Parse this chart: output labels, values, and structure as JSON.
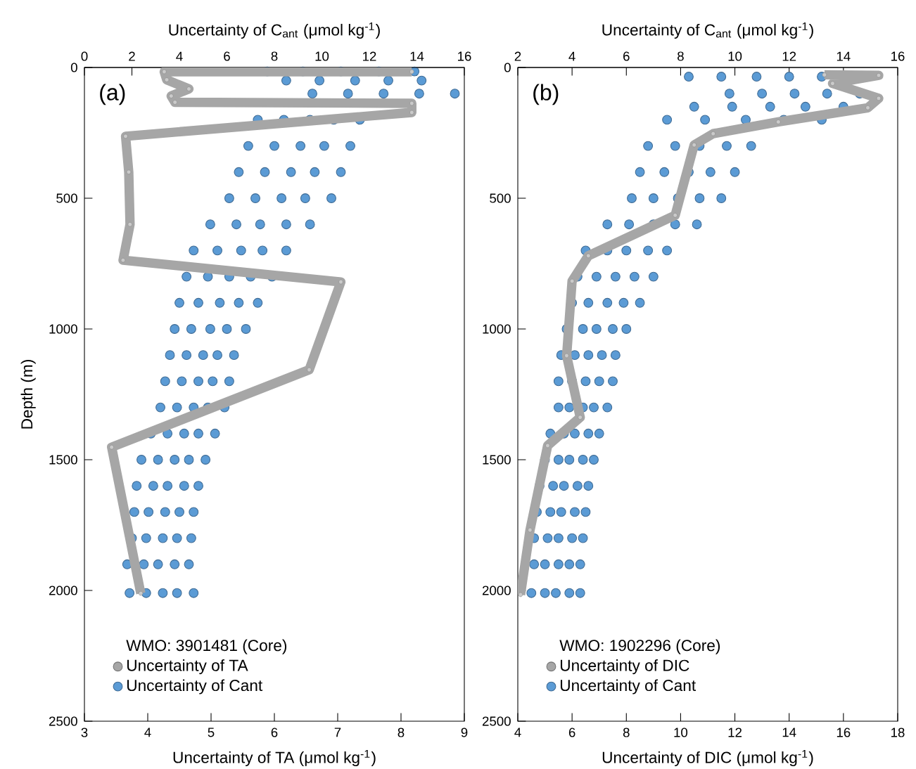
{
  "chart_data": [
    {
      "type": "scatter",
      "xlabel": "Uncertainty of TA (μmol kg$^{-1}$)",
      "x2label": "Uncertainty of C$_{ant}$ (μmol kg$^{-1}$)",
      "ylabel": "Depth (m)",
      "legend_title": "WMO: 3901481 (Core)",
      "annotations": [
        "(a)"
      ],
      "xlim": [
        3,
        9
      ],
      "xticks": [
        3,
        4,
        5,
        6,
        7,
        8,
        9
      ],
      "x2lim": [
        0,
        16
      ],
      "x2ticks": [
        0,
        2,
        4,
        6,
        8,
        10,
        12,
        14,
        16
      ],
      "ylim": [
        2500,
        0
      ],
      "yticks": [
        0,
        500,
        1000,
        1500,
        2000,
        2500
      ],
      "legend": "bottom left",
      "marker": "circle",
      "series": [
        {
          "name": "Uncertainty of TA",
          "type": "line",
          "color": "#a6a6a6",
          "x": [
            8.17,
            4.26,
            4.3,
            4.65,
            4.37,
            4.43,
            8.17,
            8.17,
            3.65,
            3.7,
            3.72,
            3.61,
            7.05,
            6.55,
            3.43,
            3.89
          ],
          "values": [
            16,
            16,
            47,
            82,
            109,
            133,
            137,
            172,
            263,
            400,
            600,
            737,
            820,
            1156,
            1452,
            2011
          ]
        },
        {
          "name": "Uncertainty of Cant",
          "axis": "x2",
          "color": "#5b9bd5",
          "x": [
            7.7,
            9.2,
            10.8,
            12.4,
            13.9,
            8.5,
            9.9,
            11.4,
            12.8,
            14.2,
            9.6,
            11.1,
            12.6,
            14.1,
            15.6,
            7.3,
            8.4,
            9.5,
            10.5,
            11.6,
            6.9,
            8.0,
            9.1,
            10.1,
            11.2,
            6.5,
            7.6,
            8.7,
            9.7,
            10.8,
            6.1,
            7.2,
            8.3,
            9.3,
            10.4,
            5.3,
            6.4,
            7.4,
            8.5,
            9.5,
            4.6,
            5.6,
            6.6,
            7.5,
            8.5,
            4.3,
            5.2,
            6.1,
            7.0,
            7.9,
            4.0,
            4.8,
            5.7,
            6.5,
            7.3,
            3.8,
            4.5,
            5.3,
            6.0,
            6.8,
            3.6,
            4.3,
            5.0,
            5.6,
            6.3,
            3.4,
            4.1,
            4.8,
            5.4,
            6.1,
            3.2,
            3.9,
            4.6,
            5.2,
            5.9,
            2.8,
            3.5,
            4.2,
            4.8,
            5.5,
            2.4,
            3.1,
            3.8,
            4.4,
            5.1,
            2.2,
            2.9,
            3.5,
            4.2,
            4.8,
            2.1,
            2.7,
            3.4,
            4.0,
            4.6,
            2.0,
            2.6,
            3.3,
            3.9,
            4.5,
            1.8,
            2.5,
            3.1,
            3.8,
            4.4,
            1.9,
            2.6,
            3.3,
            3.9,
            4.6
          ],
          "values": [
            15,
            15,
            15,
            15,
            15,
            50,
            50,
            50,
            50,
            50,
            100,
            100,
            100,
            100,
            100,
            200,
            200,
            200,
            200,
            200,
            300,
            300,
            300,
            300,
            300,
            400,
            400,
            400,
            400,
            400,
            500,
            500,
            500,
            500,
            500,
            600,
            600,
            600,
            600,
            600,
            700,
            700,
            700,
            700,
            700,
            800,
            800,
            800,
            800,
            800,
            900,
            900,
            900,
            900,
            900,
            1000,
            1000,
            1000,
            1000,
            1000,
            1100,
            1100,
            1100,
            1100,
            1100,
            1200,
            1200,
            1200,
            1200,
            1200,
            1300,
            1300,
            1300,
            1300,
            1300,
            1400,
            1400,
            1400,
            1400,
            1400,
            1500,
            1500,
            1500,
            1500,
            1500,
            1600,
            1600,
            1600,
            1600,
            1600,
            1700,
            1700,
            1700,
            1700,
            1700,
            1800,
            1800,
            1800,
            1800,
            1800,
            1900,
            1900,
            1900,
            1900,
            1900,
            2010,
            2010,
            2010,
            2010,
            2010
          ]
        }
      ]
    },
    {
      "type": "scatter",
      "xlabel": "Uncertainty of DIC (μmol kg$^{-1}$)",
      "x2label": "Uncertainty of C$_{ant}$ (μmol kg$^{-1}$)",
      "legend_title": "WMO: 1902296 (Core)",
      "annotations": [
        "(b)"
      ],
      "xlim": [
        4,
        18
      ],
      "xticks": [
        4,
        6,
        8,
        10,
        12,
        14,
        16,
        18
      ],
      "x2lim": [
        2,
        16
      ],
      "x2ticks": [
        2,
        4,
        6,
        8,
        10,
        12,
        14,
        16
      ],
      "ylim": [
        2500,
        0
      ],
      "yticks": [
        0,
        500,
        1000,
        1500,
        2000,
        2500
      ],
      "legend": "bottom left",
      "marker": "circle",
      "series": [
        {
          "name": "Uncertainty of DIC",
          "type": "line",
          "color": "#a6a6a6",
          "x": [
            15.3,
            17.3,
            15.6,
            17.3,
            16.9,
            13.6,
            11.2,
            10.5,
            9.8,
            6.6,
            6.0,
            5.8,
            6.3,
            5.1,
            4.45,
            4.1
          ],
          "values": [
            28,
            30,
            61,
            118,
            154,
            208,
            253,
            296,
            565,
            720,
            817,
            1102,
            1338,
            1446,
            1769,
            2016
          ]
        },
        {
          "name": "Uncertainty of Cant",
          "axis": "x2",
          "color": "#5b9bd5",
          "x": [
            8.3,
            9.5,
            10.8,
            12.0,
            13.2,
            9.8,
            11.0,
            12.2,
            13.4,
            14.6,
            8.5,
            9.9,
            11.3,
            12.6,
            14.0,
            7.5,
            8.9,
            10.4,
            11.8,
            13.2,
            6.8,
            7.8,
            8.7,
            9.7,
            10.6,
            6.5,
            7.4,
            8.3,
            9.1,
            10.0,
            6.2,
            7.0,
            7.9,
            8.7,
            9.5,
            5.3,
            6.1,
            7.0,
            7.8,
            8.6,
            4.5,
            5.3,
            6.0,
            6.8,
            7.5,
            4.2,
            4.9,
            5.6,
            6.3,
            7.0,
            4.0,
            4.6,
            5.3,
            5.9,
            6.5,
            3.8,
            4.4,
            4.9,
            5.5,
            6.0,
            3.6,
            4.1,
            4.6,
            5.1,
            5.6,
            3.5,
            4.0,
            4.5,
            5.0,
            5.5,
            3.5,
            3.9,
            4.4,
            4.8,
            5.3,
            3.2,
            3.7,
            4.1,
            4.6,
            5.0,
            3.0,
            3.5,
            3.9,
            4.4,
            4.8,
            2.8,
            3.3,
            3.7,
            4.2,
            4.6,
            2.7,
            3.2,
            3.6,
            4.1,
            4.5,
            2.6,
            3.1,
            3.5,
            4.0,
            4.4,
            2.6,
            3.0,
            3.5,
            3.9,
            4.3,
            2.5,
            3.0,
            3.4,
            3.9,
            4.3
          ],
          "values": [
            35,
            35,
            35,
            35,
            35,
            100,
            100,
            100,
            100,
            100,
            150,
            150,
            150,
            150,
            150,
            200,
            200,
            200,
            200,
            200,
            300,
            300,
            300,
            300,
            300,
            400,
            400,
            400,
            400,
            400,
            500,
            500,
            500,
            500,
            500,
            600,
            600,
            600,
            600,
            600,
            700,
            700,
            700,
            700,
            700,
            800,
            800,
            800,
            800,
            800,
            900,
            900,
            900,
            900,
            900,
            1000,
            1000,
            1000,
            1000,
            1000,
            1100,
            1100,
            1100,
            1100,
            1100,
            1200,
            1200,
            1200,
            1200,
            1200,
            1300,
            1300,
            1300,
            1300,
            1300,
            1400,
            1400,
            1400,
            1400,
            1400,
            1500,
            1500,
            1500,
            1500,
            1500,
            1600,
            1600,
            1600,
            1600,
            1600,
            1700,
            1700,
            1700,
            1700,
            1700,
            1800,
            1800,
            1800,
            1800,
            1800,
            1900,
            1900,
            1900,
            1900,
            1900,
            2010,
            2010,
            2010,
            2010,
            2010
          ]
        }
      ]
    }
  ]
}
